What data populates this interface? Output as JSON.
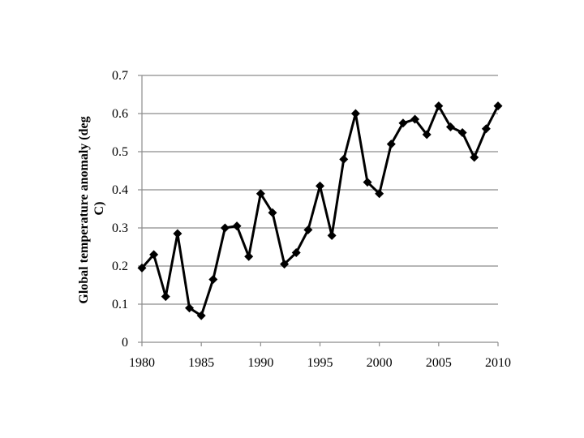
{
  "chart_data": {
    "type": "line",
    "title": "",
    "xlabel": "",
    "ylabel": "Global temperature anomaly (deg C)",
    "ylabel_lines": [
      "Global temperature anomaly (deg",
      "C)"
    ],
    "xlim": [
      1980,
      2010
    ],
    "ylim": [
      0,
      0.7
    ],
    "x_ticks": [
      "1980",
      "1985",
      "1990",
      "1995",
      "2000",
      "2005",
      "2010"
    ],
    "y_ticks": [
      "0",
      "0.1",
      "0.2",
      "0.3",
      "0.4",
      "0.5",
      "0.6",
      "0.7"
    ],
    "grid": "horizontal",
    "legend": "none",
    "line_color": "#000000",
    "marker": "diamond",
    "series": [
      {
        "x": [
          1980,
          1981,
          1982,
          1983,
          1984,
          1985,
          1986,
          1987,
          1988,
          1989,
          1990,
          1991,
          1992,
          1993,
          1994,
          1995,
          1996,
          1997,
          1998,
          1999,
          2000,
          2001,
          2002,
          2003,
          2004,
          2005,
          2006,
          2007,
          2008,
          2009,
          2010
        ],
        "values": [
          0.195,
          0.23,
          0.12,
          0.285,
          0.09,
          0.07,
          0.165,
          0.3,
          0.305,
          0.225,
          0.39,
          0.34,
          0.205,
          0.235,
          0.295,
          0.41,
          0.28,
          0.48,
          0.6,
          0.42,
          0.39,
          0.52,
          0.575,
          0.585,
          0.545,
          0.62,
          0.565,
          0.55,
          0.485,
          0.56,
          0.62
        ]
      }
    ]
  }
}
